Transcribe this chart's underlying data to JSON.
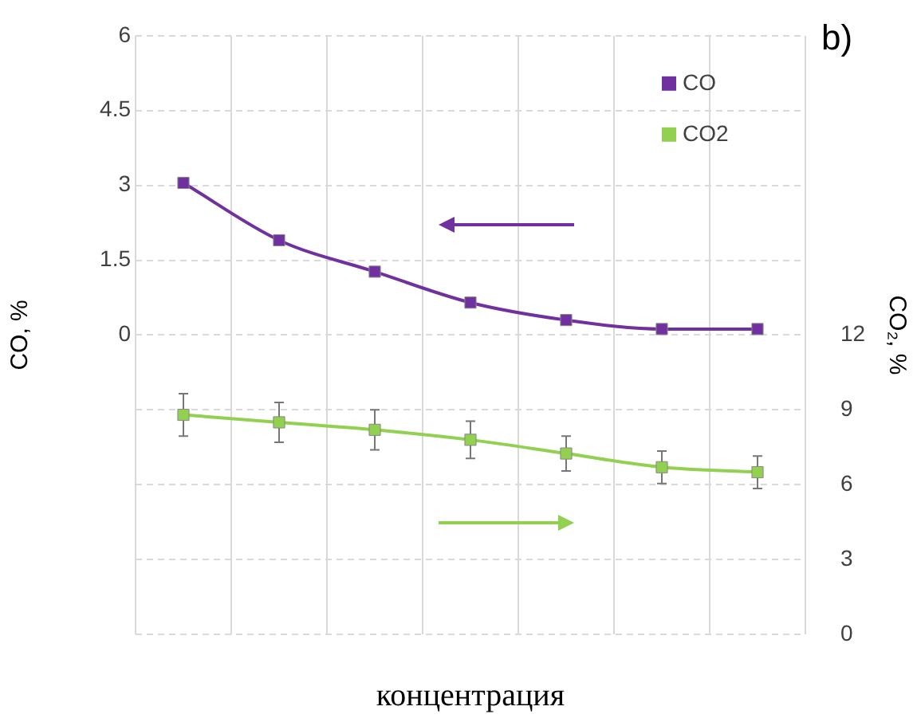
{
  "chart_data": {
    "type": "line",
    "xlabel": "концентрация",
    "ylabel": "CO, %",
    "y2label": "CO₂, %",
    "annotations": [
      "b)"
    ],
    "categories": [
      null,
      null,
      null,
      null,
      null,
      null,
      null
    ],
    "series": [
      {
        "name": "CO",
        "color": "#7030a0",
        "values": [
          3.05,
          1.9,
          1.27,
          0.65,
          0.3,
          0.12,
          0.12
        ],
        "errors": [
          0.1,
          0.05,
          null,
          null,
          null,
          null,
          null
        ]
      },
      {
        "name": "CO2",
        "color": "#92d050",
        "axis": "y2",
        "values": [
          8.8,
          8.5,
          8.2,
          7.8,
          7.25,
          6.7,
          6.5
        ],
        "errors": [
          0.85,
          0.8,
          0.8,
          0.75,
          0.7,
          0.65,
          0.65
        ]
      }
    ],
    "ylim": [
      -6,
      6
    ],
    "yticks": [
      {
        "value": -6,
        "label": null
      },
      {
        "value": -4.5,
        "label": null
      },
      {
        "value": -3,
        "label": null
      },
      {
        "value": -1.5,
        "label": null
      },
      0,
      1.5,
      3,
      4.5,
      6
    ],
    "y2lim": [
      0,
      24
    ],
    "y2ticks": [
      0,
      3,
      6,
      9,
      12
    ],
    "grid": true,
    "legend": "top right",
    "marker": "square",
    "line_style": "solid"
  }
}
